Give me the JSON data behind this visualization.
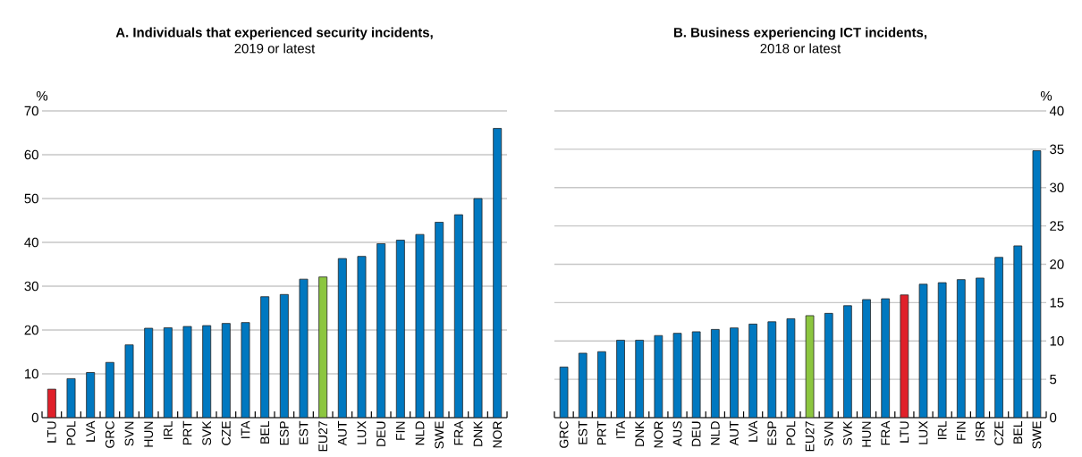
{
  "chart_data": [
    {
      "type": "bar",
      "title": "A. Individuals that experienced security incidents,",
      "subtitle": "2019 or latest",
      "ylabel": "%",
      "categories": [
        "LTU",
        "POL",
        "LVA",
        "GRC",
        "SVN",
        "HUN",
        "IRL",
        "PRT",
        "SVK",
        "CZE",
        "ITA",
        "BEL",
        "ESP",
        "EST",
        "EU27",
        "AUT",
        "LUX",
        "DEU",
        "FIN",
        "NLD",
        "SWE",
        "FRA",
        "DNK",
        "NOR"
      ],
      "values": [
        6.5,
        8.9,
        10.3,
        12.6,
        16.6,
        20.4,
        20.5,
        20.8,
        21.0,
        21.5,
        21.7,
        27.6,
        28.1,
        31.6,
        32.1,
        36.3,
        36.8,
        39.7,
        40.5,
        41.8,
        44.6,
        46.3,
        50.0,
        66.0
      ],
      "colors": [
        "#e0202a",
        "#0078c0",
        "#0078c0",
        "#0078c0",
        "#0078c0",
        "#0078c0",
        "#0078c0",
        "#0078c0",
        "#0078c0",
        "#0078c0",
        "#0078c0",
        "#0078c0",
        "#0078c0",
        "#0078c0",
        "#8cc63f",
        "#0078c0",
        "#0078c0",
        "#0078c0",
        "#0078c0",
        "#0078c0",
        "#0078c0",
        "#0078c0",
        "#0078c0",
        "#0078c0"
      ],
      "ylim": [
        0,
        70
      ],
      "yticks": [
        0,
        10,
        20,
        30,
        40,
        50,
        60,
        70
      ],
      "grid": "y"
    },
    {
      "type": "bar",
      "title": "B. Business experiencing ICT incidents,",
      "subtitle": "2018 or latest",
      "ylabel": "%",
      "categories": [
        "GRC",
        "EST",
        "PRT",
        "ITA",
        "DNK",
        "NOR",
        "AUS",
        "DEU",
        "NLD",
        "AUT",
        "LVA",
        "ESP",
        "POL",
        "EU27",
        "SVN",
        "SVK",
        "HUN",
        "FRA",
        "LTU",
        "LUX",
        "IRL",
        "FIN",
        "ISR",
        "CZE",
        "BEL",
        "SWE"
      ],
      "values": [
        6.6,
        8.4,
        8.6,
        10.1,
        10.1,
        10.7,
        11.0,
        11.2,
        11.5,
        11.7,
        12.2,
        12.5,
        12.9,
        13.3,
        13.6,
        14.6,
        15.4,
        15.5,
        16.0,
        17.4,
        17.6,
        18.0,
        18.2,
        20.9,
        22.4,
        34.8
      ],
      "colors": [
        "#0078c0",
        "#0078c0",
        "#0078c0",
        "#0078c0",
        "#0078c0",
        "#0078c0",
        "#0078c0",
        "#0078c0",
        "#0078c0",
        "#0078c0",
        "#0078c0",
        "#0078c0",
        "#0078c0",
        "#8cc63f",
        "#0078c0",
        "#0078c0",
        "#0078c0",
        "#0078c0",
        "#e0202a",
        "#0078c0",
        "#0078c0",
        "#0078c0",
        "#0078c0",
        "#0078c0",
        "#0078c0",
        "#0078c0"
      ],
      "ylim": [
        0,
        40
      ],
      "yticks": [
        0,
        5,
        10,
        15,
        20,
        25,
        30,
        35,
        40
      ],
      "grid": "y"
    }
  ]
}
